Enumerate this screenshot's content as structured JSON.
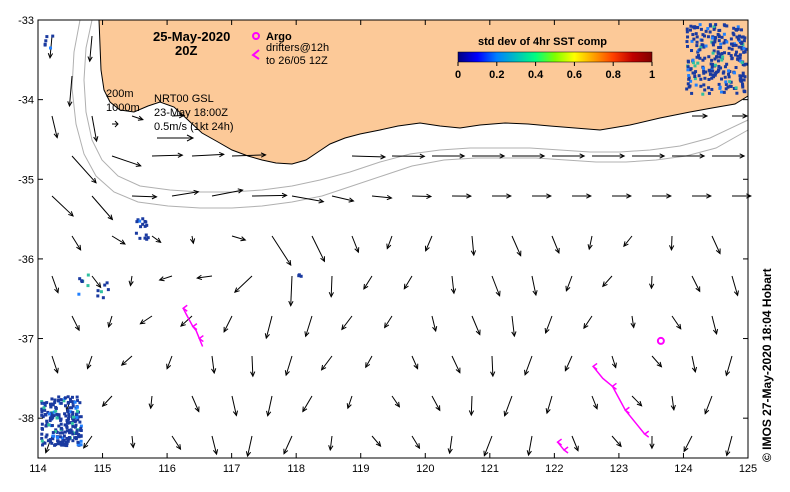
{
  "title": {
    "date": "25-May-2020",
    "time": "20Z"
  },
  "legend": {
    "argo_label": "Argo",
    "drifter_label": "drifters@12h",
    "drifter_label2": "to 26/05 12Z",
    "argo_color": "#ff00ff",
    "drifter_color": "#ff00ff"
  },
  "colorbar": {
    "title": "std dev of 4hr SST comp",
    "ticks": [
      "0",
      "0.2",
      "0.4",
      "0.6",
      "0.8",
      "1"
    ],
    "colors": [
      "#000080",
      "#0000ff",
      "#0080ff",
      "#00c0c0",
      "#00ff80",
      "#80ff00",
      "#ffff00",
      "#ffa000",
      "#ff4000",
      "#c00000",
      "#800000"
    ]
  },
  "annotations": {
    "isobath_200": "200m",
    "isobath_1000": "1000m",
    "product": "NRT00 GSL",
    "valid_time": "23-May 18:00Z",
    "scale": "0.5m/s (1kt 24h)"
  },
  "credit": "© IMOS 27-May-2020 18:04 Hobart",
  "axes": {
    "x_ticks": [
      "114",
      "115",
      "116",
      "117",
      "118",
      "119",
      "120",
      "121",
      "122",
      "123",
      "124",
      "125"
    ],
    "y_ticks": [
      "-33",
      "-34",
      "-35",
      "-36",
      "-37",
      "-38"
    ],
    "x_range": [
      114,
      125
    ],
    "y_range": [
      -38.5,
      -33
    ]
  },
  "colors": {
    "land": "#fcc998",
    "coast": "#000000",
    "isobath": "#b0b0b0",
    "sst_noise": "#1a3aa0"
  },
  "argo_floats": [
    {
      "lon": 123.65,
      "lat": -37.03
    }
  ]
}
